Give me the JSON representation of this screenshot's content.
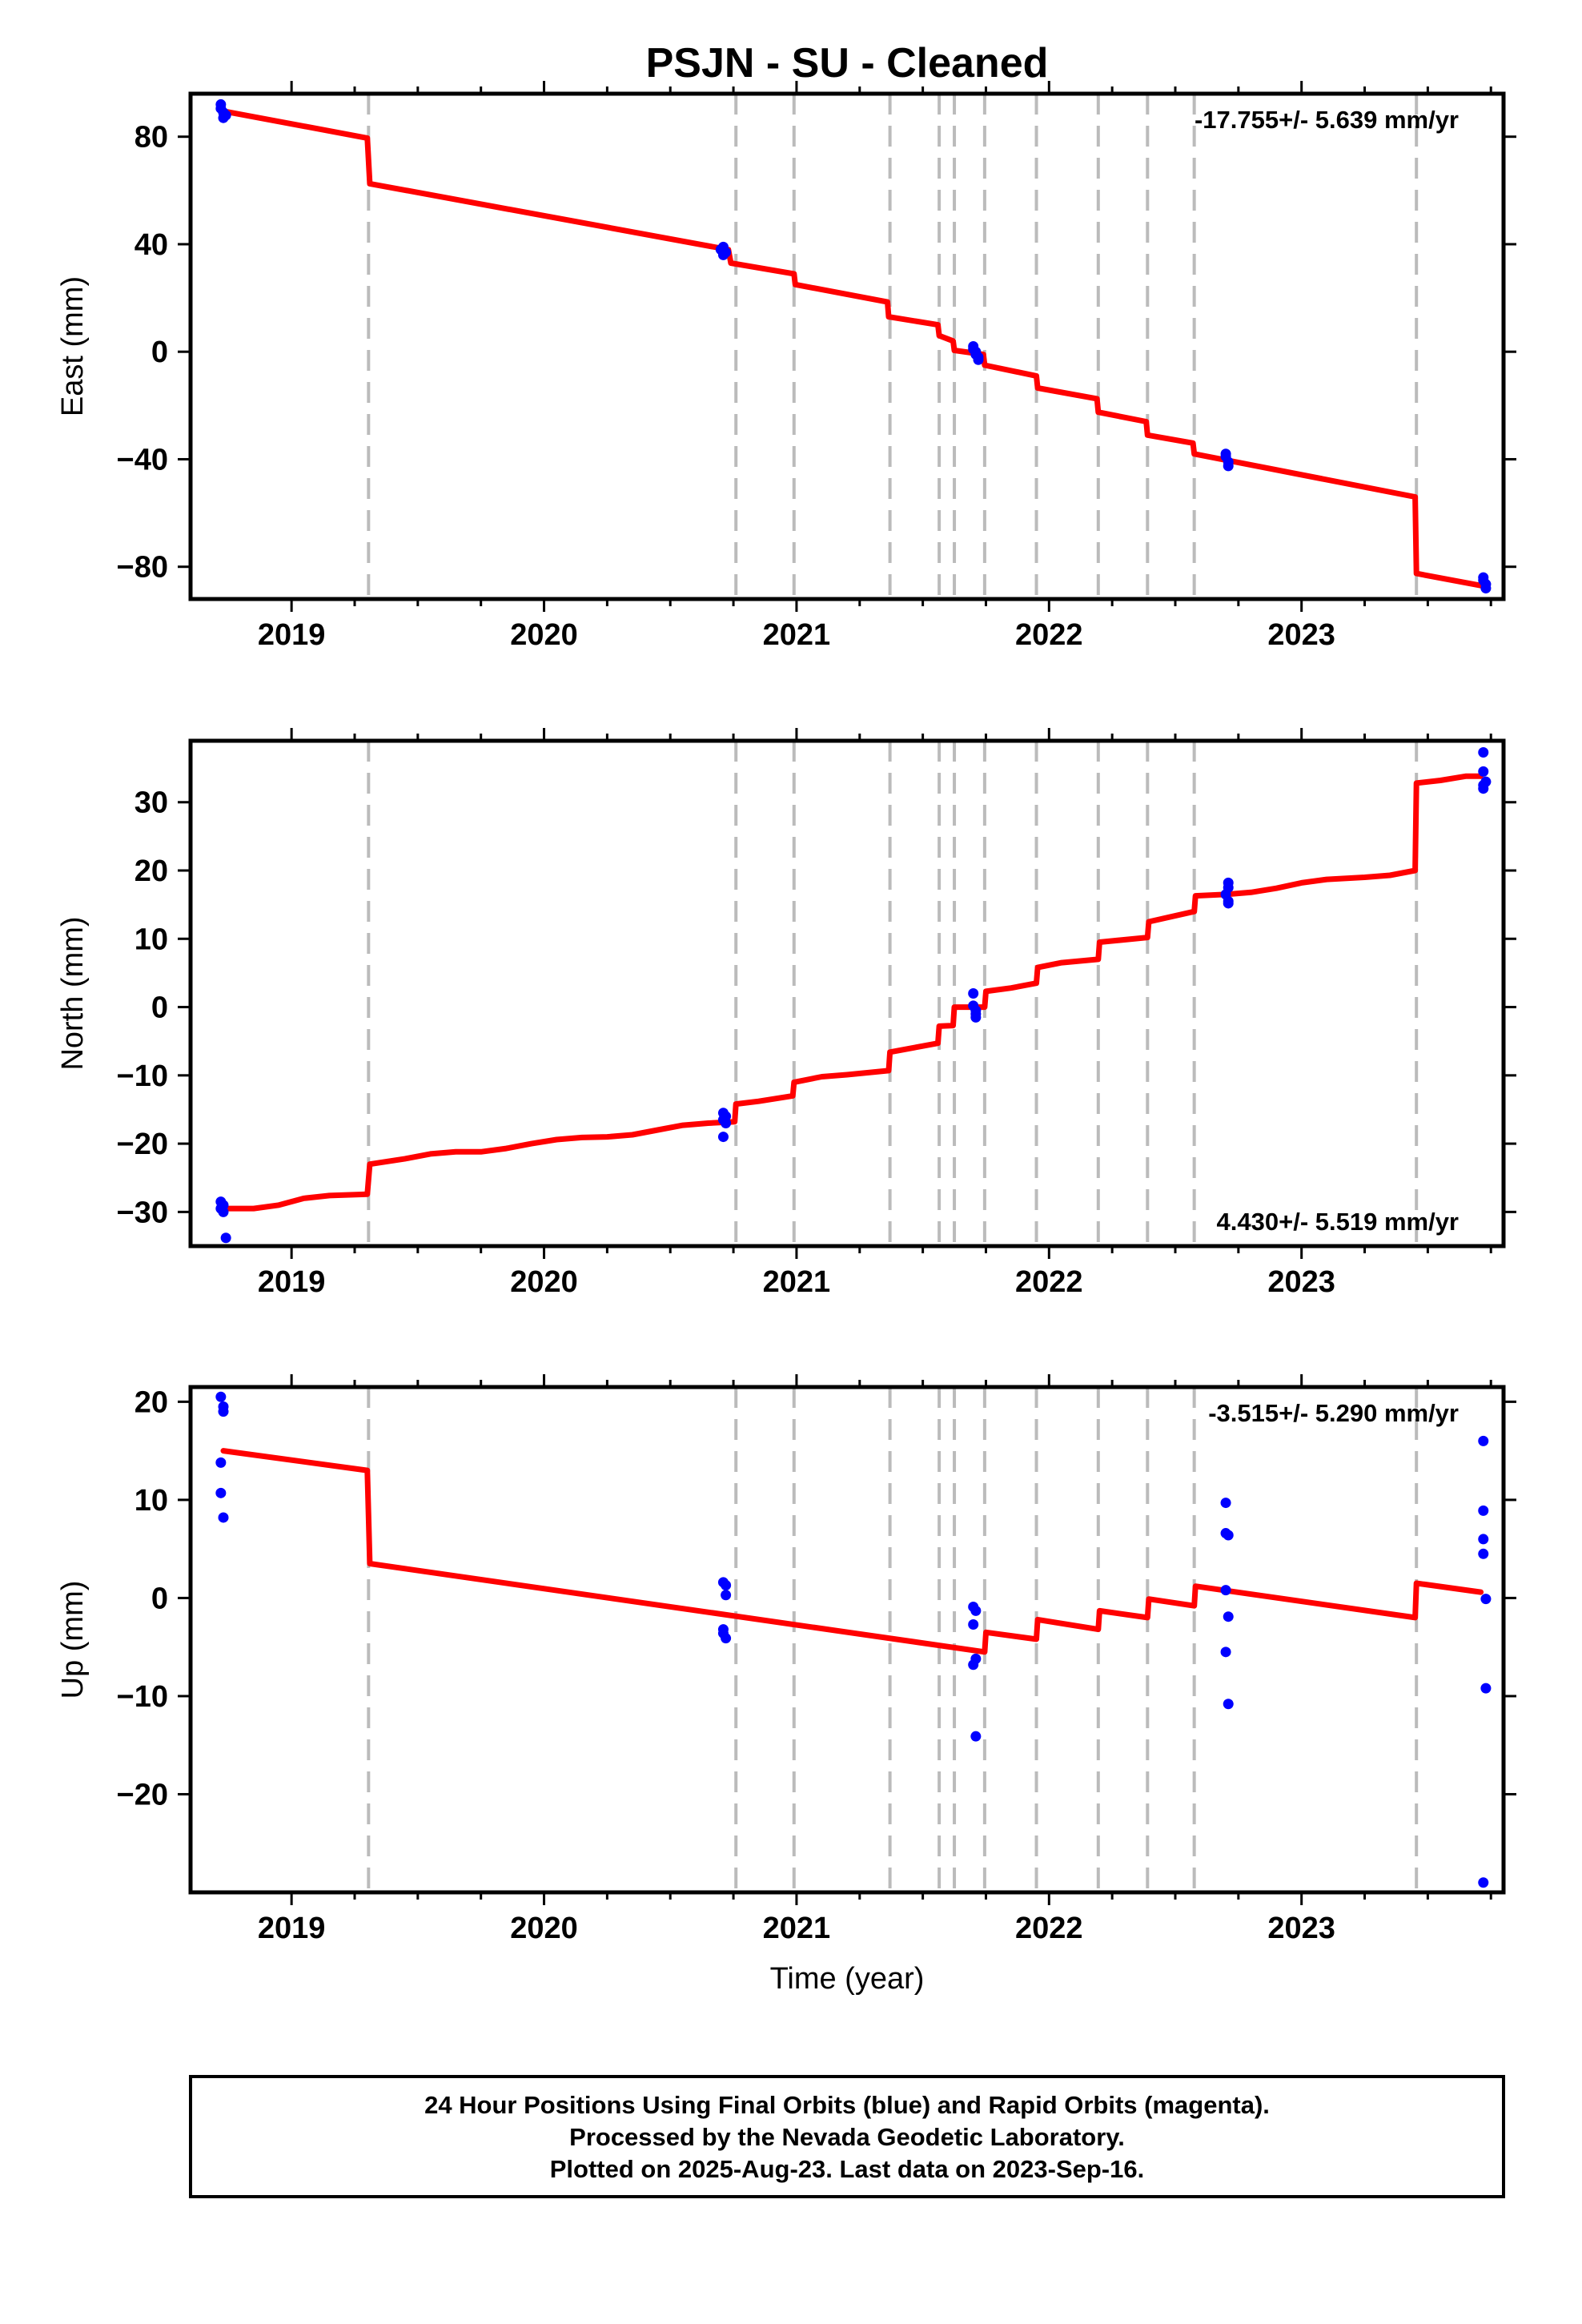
{
  "chart_data": {
    "type": "line",
    "title": "PSJN  - SU - Cleaned",
    "xlabel": "Time (year)",
    "xlim": [
      2018.6,
      2023.8
    ],
    "x_ticks": [
      2019,
      2020,
      2021,
      2022,
      2023
    ],
    "x_tick_labels": [
      "2019",
      "2020",
      "2021",
      "2022",
      "2023"
    ],
    "step_epochs": [
      2019.305,
      2020.76,
      2020.99,
      2021.37,
      2021.565,
      2021.625,
      2021.745,
      2021.95,
      2022.195,
      2022.39,
      2022.575,
      2023.455
    ],
    "panels": [
      {
        "name": "east",
        "ylabel": "East (mm)",
        "ylim": [
          -92,
          96
        ],
        "y_ticks": [
          80,
          40,
          0,
          -40,
          -80
        ],
        "y_tick_labels": [
          "80",
          "40",
          "0",
          "−40",
          "−80"
        ],
        "rate": "-17.755+/- 5.639 mm/yr",
        "rate_position": "top-right",
        "model": [
          [
            2018.73,
            89.5
          ],
          [
            2019.3,
            79.5
          ],
          [
            2019.31,
            62.5
          ],
          [
            2020.73,
            38
          ],
          [
            2020.74,
            33
          ],
          [
            2020.99,
            29
          ],
          [
            2020.995,
            25
          ],
          [
            2021.36,
            18.5
          ],
          [
            2021.365,
            13
          ],
          [
            2021.56,
            10
          ],
          [
            2021.565,
            6
          ],
          [
            2021.62,
            4
          ],
          [
            2021.625,
            0.5
          ],
          [
            2021.74,
            -1
          ],
          [
            2021.745,
            -5
          ],
          [
            2021.95,
            -9
          ],
          [
            2021.955,
            -13.5
          ],
          [
            2022.19,
            -17.5
          ],
          [
            2022.195,
            -22.5
          ],
          [
            2022.385,
            -26
          ],
          [
            2022.39,
            -31
          ],
          [
            2022.57,
            -34
          ],
          [
            2022.575,
            -38
          ],
          [
            2023.45,
            -54
          ],
          [
            2023.455,
            -82.5
          ],
          [
            2023.71,
            -87
          ]
        ],
        "points": [
          [
            2018.72,
            92
          ],
          [
            2018.72,
            90.5
          ],
          [
            2018.73,
            89
          ],
          [
            2018.74,
            88
          ],
          [
            2018.73,
            87
          ],
          [
            2020.7,
            38
          ],
          [
            2020.71,
            39
          ],
          [
            2020.71,
            37.5
          ],
          [
            2020.72,
            37
          ],
          [
            2020.71,
            36
          ],
          [
            2021.7,
            2
          ],
          [
            2021.7,
            1
          ],
          [
            2021.71,
            0
          ],
          [
            2021.71,
            -1
          ],
          [
            2021.72,
            -2
          ],
          [
            2021.72,
            -3
          ],
          [
            2022.7,
            -38
          ],
          [
            2022.7,
            -39
          ],
          [
            2022.71,
            -41
          ],
          [
            2022.71,
            -42.5
          ],
          [
            2023.72,
            -84
          ],
          [
            2023.72,
            -85
          ],
          [
            2023.73,
            -86.5
          ],
          [
            2023.73,
            -88
          ]
        ]
      },
      {
        "name": "north",
        "ylabel": "North (mm)",
        "ylim": [
          -35,
          39
        ],
        "y_ticks": [
          30,
          20,
          10,
          0,
          -10,
          -20,
          -30
        ],
        "y_tick_labels": [
          "30",
          "20",
          "10",
          "0",
          "−10",
          "−20",
          "−30"
        ],
        "rate": "4.430+/- 5.519 mm/yr",
        "rate_position": "bottom-right",
        "model": [
          [
            2018.73,
            -29.5
          ],
          [
            2018.85,
            -29.5
          ],
          [
            2018.95,
            -29
          ],
          [
            2019.05,
            -28
          ],
          [
            2019.15,
            -27.6
          ],
          [
            2019.3,
            -27.4
          ],
          [
            2019.31,
            -23
          ],
          [
            2019.45,
            -22.2
          ],
          [
            2019.55,
            -21.5
          ],
          [
            2019.65,
            -21.2
          ],
          [
            2019.75,
            -21.2
          ],
          [
            2019.85,
            -20.7
          ],
          [
            2019.95,
            -20
          ],
          [
            2020.05,
            -19.4
          ],
          [
            2020.15,
            -19.1
          ],
          [
            2020.25,
            -19
          ],
          [
            2020.35,
            -18.7
          ],
          [
            2020.45,
            -18
          ],
          [
            2020.55,
            -17.3
          ],
          [
            2020.65,
            -17
          ],
          [
            2020.755,
            -16.8
          ],
          [
            2020.76,
            -14.2
          ],
          [
            2020.85,
            -13.8
          ],
          [
            2020.985,
            -13
          ],
          [
            2020.99,
            -11
          ],
          [
            2021.1,
            -10.2
          ],
          [
            2021.2,
            -9.9
          ],
          [
            2021.365,
            -9.3
          ],
          [
            2021.37,
            -6.6
          ],
          [
            2021.5,
            -5.7
          ],
          [
            2021.56,
            -5.3
          ],
          [
            2021.565,
            -2.8
          ],
          [
            2021.62,
            -2.7
          ],
          [
            2021.625,
            0
          ],
          [
            2021.745,
            0
          ],
          [
            2021.75,
            2.3
          ],
          [
            2021.85,
            2.8
          ],
          [
            2021.95,
            3.5
          ],
          [
            2021.955,
            5.8
          ],
          [
            2022.05,
            6.5
          ],
          [
            2022.195,
            7
          ],
          [
            2022.2,
            9.5
          ],
          [
            2022.39,
            10.2
          ],
          [
            2022.395,
            12.5
          ],
          [
            2022.575,
            14
          ],
          [
            2022.58,
            16.3
          ],
          [
            2022.7,
            16.5
          ],
          [
            2022.8,
            16.8
          ],
          [
            2022.9,
            17.4
          ],
          [
            2023.0,
            18.2
          ],
          [
            2023.1,
            18.7
          ],
          [
            2023.25,
            19
          ],
          [
            2023.35,
            19.3
          ],
          [
            2023.45,
            20
          ],
          [
            2023.455,
            32.8
          ],
          [
            2023.55,
            33.2
          ],
          [
            2023.65,
            33.8
          ],
          [
            2023.71,
            33.8
          ]
        ],
        "points": [
          [
            2018.72,
            -28.5
          ],
          [
            2018.73,
            -29
          ],
          [
            2018.72,
            -29.5
          ],
          [
            2018.73,
            -30
          ],
          [
            2018.74,
            -33.8
          ],
          [
            2020.71,
            -15.5
          ],
          [
            2020.72,
            -16
          ],
          [
            2020.71,
            -16.5
          ],
          [
            2020.72,
            -17
          ],
          [
            2020.71,
            -19
          ],
          [
            2021.7,
            2
          ],
          [
            2021.7,
            0.2
          ],
          [
            2021.71,
            -0.5
          ],
          [
            2021.71,
            -1
          ],
          [
            2021.71,
            -1.5
          ],
          [
            2022.71,
            18.2
          ],
          [
            2022.71,
            17.5
          ],
          [
            2022.7,
            16.5
          ],
          [
            2022.71,
            15.5
          ],
          [
            2022.71,
            15.2
          ],
          [
            2023.72,
            37.3
          ],
          [
            2023.72,
            34.5
          ],
          [
            2023.73,
            33
          ],
          [
            2023.72,
            32.5
          ],
          [
            2023.72,
            32
          ]
        ]
      },
      {
        "name": "up",
        "ylabel": "Up (mm)",
        "ylim": [
          -30,
          21.5
        ],
        "y_ticks": [
          20,
          10,
          0,
          -10,
          -20
        ],
        "y_tick_labels": [
          "20",
          "10",
          "0",
          "−10",
          "−20"
        ],
        "rate": "-3.515+/- 5.290 mm/yr",
        "rate_position": "top-right",
        "model": [
          [
            2018.73,
            15
          ],
          [
            2019.3,
            13
          ],
          [
            2019.31,
            3.5
          ],
          [
            2021.745,
            -5.5
          ],
          [
            2021.75,
            -3.5
          ],
          [
            2021.95,
            -4.2
          ],
          [
            2021.955,
            -2.2
          ],
          [
            2022.195,
            -3.2
          ],
          [
            2022.2,
            -1.3
          ],
          [
            2022.39,
            -2
          ],
          [
            2022.395,
            -0.1
          ],
          [
            2022.575,
            -0.8
          ],
          [
            2022.58,
            1.2
          ],
          [
            2023.45,
            -2
          ],
          [
            2023.455,
            1.5
          ],
          [
            2023.71,
            0.6
          ]
        ],
        "points": [
          [
            2018.72,
            20.5
          ],
          [
            2018.73,
            19.5
          ],
          [
            2018.73,
            19
          ],
          [
            2018.72,
            13.8
          ],
          [
            2018.72,
            10.7
          ],
          [
            2018.73,
            8.2
          ],
          [
            2020.71,
            1.6
          ],
          [
            2020.72,
            1.3
          ],
          [
            2020.72,
            0.3
          ],
          [
            2020.71,
            -3.2
          ],
          [
            2020.71,
            -3.6
          ],
          [
            2020.72,
            -4.1
          ],
          [
            2021.7,
            -0.9
          ],
          [
            2021.71,
            -1.3
          ],
          [
            2021.7,
            -2.7
          ],
          [
            2021.71,
            -6.2
          ],
          [
            2021.7,
            -6.8
          ],
          [
            2021.71,
            -14.1
          ],
          [
            2022.7,
            9.7
          ],
          [
            2022.7,
            6.6
          ],
          [
            2022.71,
            6.4
          ],
          [
            2022.7,
            0.8
          ],
          [
            2022.71,
            -1.9
          ],
          [
            2022.7,
            -5.5
          ],
          [
            2022.71,
            -10.8
          ],
          [
            2023.72,
            16
          ],
          [
            2023.72,
            8.9
          ],
          [
            2023.72,
            6
          ],
          [
            2023.72,
            4.5
          ],
          [
            2023.73,
            -0.1
          ],
          [
            2023.73,
            -9.2
          ],
          [
            2023.72,
            -29
          ]
        ]
      }
    ],
    "colors": {
      "model": "#ff0000",
      "points": "#0000ff",
      "breaks": "#bbbbbb",
      "frame": "#000000"
    },
    "grid": false
  },
  "footer": {
    "line1": "24 Hour Positions Using Final Orbits (blue) and Rapid Orbits (magenta).",
    "line2": "Processed by the Nevada Geodetic Laboratory.",
    "line3": "Plotted on 2025-Aug-23. Last data on 2023-Sep-16."
  }
}
